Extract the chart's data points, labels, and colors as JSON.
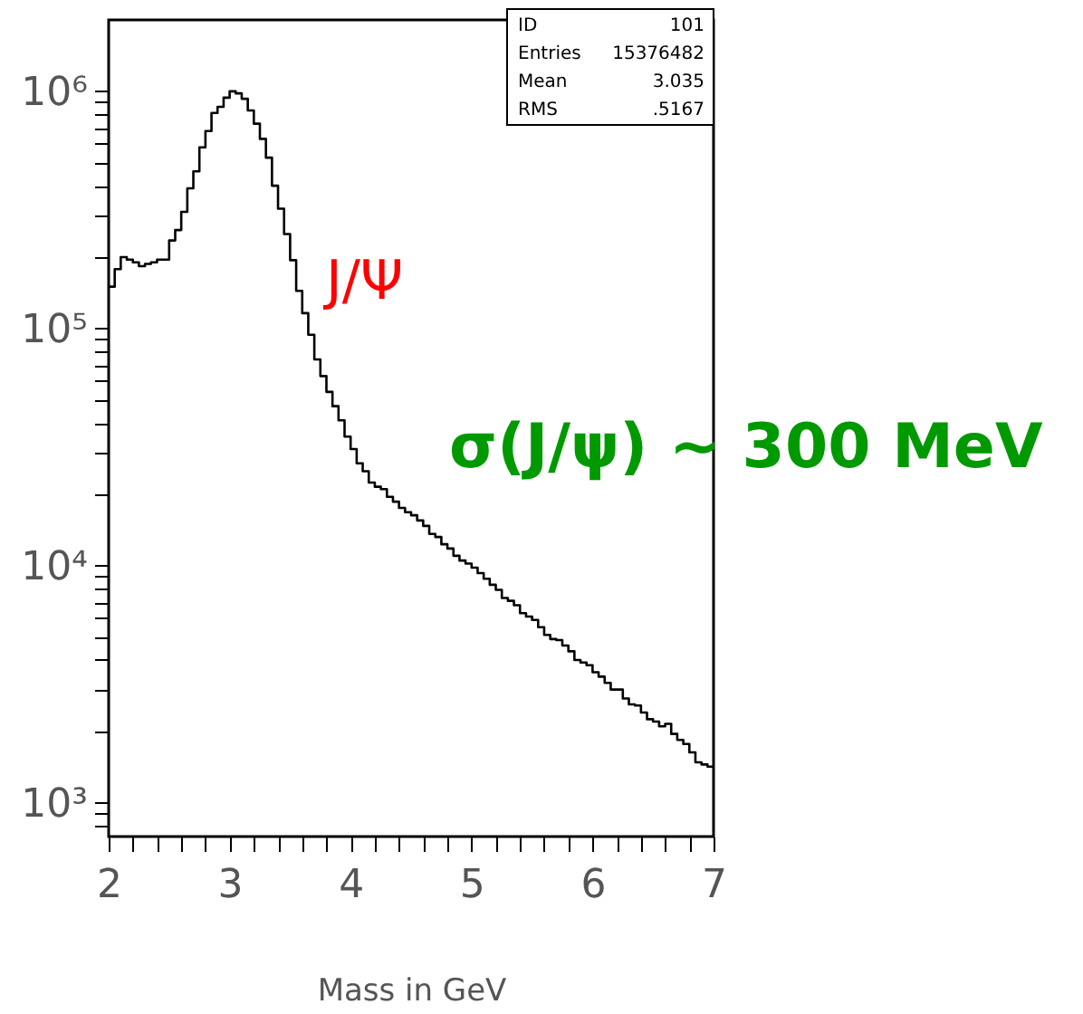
{
  "chart_data": {
    "type": "histogram",
    "xlabel": "Mass in GeV",
    "bins": [
      2,
      2.05,
      2.1,
      2.15,
      2.2,
      2.25,
      2.3,
      2.35,
      2.4,
      2.45,
      2.5,
      2.55,
      2.6,
      2.65,
      2.7,
      2.75,
      2.8,
      2.85,
      2.9,
      2.95,
      3,
      3.05,
      3.1,
      3.15,
      3.2,
      3.25,
      3.3,
      3.35,
      3.4,
      3.45,
      3.5,
      3.55,
      3.6,
      3.65,
      3.7,
      3.75,
      3.8,
      3.85,
      3.9,
      3.95,
      4,
      4.05,
      4.1,
      4.15,
      4.2,
      4.25,
      4.3,
      4.35,
      4.4,
      4.45,
      4.5,
      4.55,
      4.6,
      4.65,
      4.7,
      4.75,
      4.8,
      4.85,
      4.9,
      4.95,
      5,
      5.05,
      5.1,
      5.15,
      5.2,
      5.25,
      5.3,
      5.35,
      5.4,
      5.45,
      5.5,
      5.55,
      5.6,
      5.65,
      5.7,
      5.75,
      5.8,
      5.85,
      5.9,
      5.95,
      6,
      6.05,
      6.1,
      6.15,
      6.2,
      6.25,
      6.3,
      6.35,
      6.4,
      6.45,
      6.5,
      6.55,
      6.6,
      6.65,
      6.7,
      6.75,
      6.8,
      6.85,
      6.9,
      6.95,
      7
    ],
    "values": [
      150000,
      178000,
      200000,
      195000,
      190000,
      183000,
      187000,
      190000,
      195000,
      195000,
      235000,
      260000,
      310000,
      390000,
      460000,
      580000,
      680000,
      810000,
      860000,
      940000,
      1000000,
      980000,
      930000,
      830000,
      730000,
      630000,
      525000,
      400000,
      320000,
      250000,
      194000,
      144000,
      116000,
      94000,
      74000,
      63000,
      54000,
      47000,
      41000,
      35000,
      31000,
      27000,
      25000,
      22400,
      21500,
      21000,
      19500,
      18600,
      17500,
      16800,
      16300,
      15500,
      14700,
      13600,
      13200,
      12300,
      11800,
      11000,
      10500,
      10200,
      9800,
      9300,
      8800,
      8300,
      7900,
      7300,
      7100,
      6800,
      6300,
      6100,
      5900,
      5500,
      5100,
      4900,
      4850,
      4600,
      4350,
      4000,
      3900,
      3800,
      3550,
      3400,
      3200,
      3000,
      3000,
      2750,
      2600,
      2570,
      2400,
      2250,
      2200,
      2100,
      2150,
      1950,
      1840,
      1770,
      1630,
      1480,
      1450,
      1420
    ],
    "color": "#000000",
    "log": "y",
    "xlim": [
      2,
      7
    ],
    "xticks": [
      2,
      {
        "value": 2.2,
        "label": null
      },
      {
        "value": 2.4,
        "label": null
      },
      {
        "value": 2.6,
        "label": null
      },
      {
        "value": 2.8,
        "label": null
      },
      3,
      {
        "value": 3.2,
        "label": null
      },
      {
        "value": 3.4,
        "label": null
      },
      {
        "value": 3.6,
        "label": null
      },
      {
        "value": 3.8,
        "label": null
      },
      4,
      {
        "value": 4.2,
        "label": null
      },
      {
        "value": 4.4,
        "label": null
      },
      {
        "value": 4.6,
        "label": null
      },
      {
        "value": 4.8,
        "label": null
      },
      5,
      {
        "value": 5.2,
        "label": null
      },
      {
        "value": 5.4,
        "label": null
      },
      {
        "value": 5.6,
        "label": null
      },
      {
        "value": 5.8,
        "label": null
      },
      6,
      {
        "value": 6.2,
        "label": null
      },
      {
        "value": 6.4,
        "label": null
      },
      {
        "value": 6.6,
        "label": null
      },
      {
        "value": 6.8,
        "label": null
      },
      7
    ],
    "ylim": [
      720,
      2000000
    ],
    "yticks": [
      {
        "value": 800,
        "label": null
      },
      {
        "value": 900,
        "label": null
      },
      {
        "value": 1000,
        "label": "10³"
      },
      {
        "value": 2000,
        "label": null
      },
      {
        "value": 3000,
        "label": null
      },
      {
        "value": 4000,
        "label": null
      },
      {
        "value": 5000,
        "label": null
      },
      {
        "value": 6000,
        "label": null
      },
      {
        "value": 7000,
        "label": null
      },
      {
        "value": 8000,
        "label": null
      },
      {
        "value": 9000,
        "label": null
      },
      {
        "value": 10000,
        "label": "10⁴"
      },
      {
        "value": 20000,
        "label": null
      },
      {
        "value": 30000,
        "label": null
      },
      {
        "value": 40000,
        "label": null
      },
      {
        "value": 50000,
        "label": null
      },
      {
        "value": 60000,
        "label": null
      },
      {
        "value": 70000,
        "label": null
      },
      {
        "value": 80000,
        "label": null
      },
      {
        "value": 90000,
        "label": null
      },
      {
        "value": 100000,
        "label": "10⁵"
      },
      {
        "value": 200000,
        "label": null
      },
      {
        "value": 300000,
        "label": null
      },
      {
        "value": 400000,
        "label": null
      },
      {
        "value": 500000,
        "label": null
      },
      {
        "value": 600000,
        "label": null
      },
      {
        "value": 700000,
        "label": null
      },
      {
        "value": 800000,
        "label": null
      },
      {
        "value": 900000,
        "label": null
      },
      {
        "value": 1000000,
        "label": "10⁶"
      }
    ],
    "grid": false,
    "annotations": [
      "ID",
      "101",
      "Entries",
      "15376482",
      "Mean",
      "3.035",
      "RMS",
      ".5167",
      "J/Ψ",
      "σ(J/ψ) ~ 300 MeV"
    ]
  }
}
